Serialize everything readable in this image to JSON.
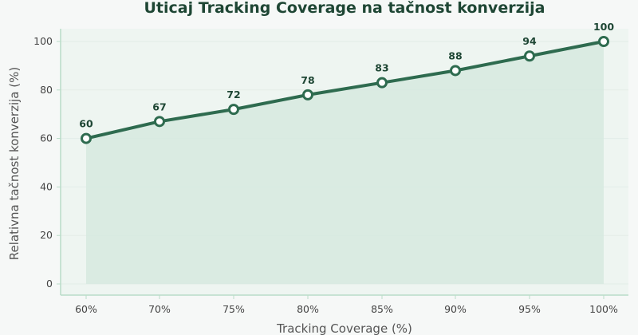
{
  "chart_data": {
    "type": "line",
    "title": "Uticaj Tracking Coverage na tačnost konverzija",
    "xlabel": "Tracking Coverage (%)",
    "ylabel": "Relativna tačnost konverzija (%)",
    "categories": [
      "60%",
      "70%",
      "75%",
      "80%",
      "85%",
      "90%",
      "95%",
      "100%"
    ],
    "values": [
      60,
      67,
      72,
      78,
      83,
      88,
      94,
      100
    ],
    "ylim": [
      0,
      105
    ],
    "yticks": [
      0,
      20,
      40,
      60,
      80,
      100
    ],
    "grid": true,
    "area_fill": true,
    "colors": {
      "line": "#2e6b4f",
      "fill": "#d6e9df",
      "plot_bg": "#eef5f1",
      "axis": "#b9dcc8",
      "grid": "#e3ede8"
    }
  }
}
